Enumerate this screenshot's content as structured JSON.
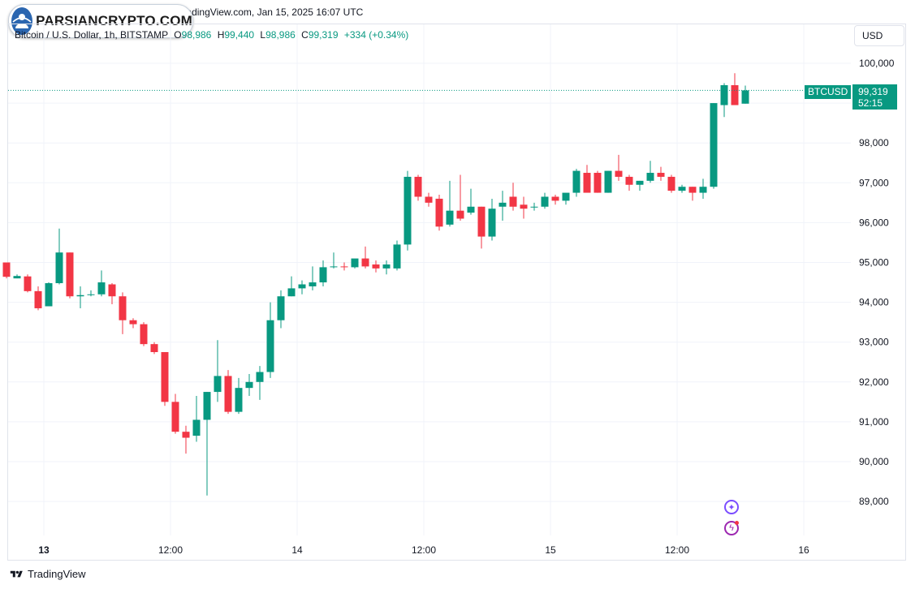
{
  "header": {
    "source_line": "Bitcoin / U.S. Dollar  published on TradingView.com, Jan 15, 2025 16:07 UTC",
    "logo_text": "PARSIANCRYPTO.COM"
  },
  "legend": {
    "symbol": "Bitcoin / U.S. Dollar, 1h, BITSTAMP",
    "open_key": "O",
    "open": "98,986",
    "high_key": "H",
    "high": "99,440",
    "low_key": "L",
    "low": "98,986",
    "close_key": "C",
    "close": "99,319",
    "change": "+334 (+0.34%)"
  },
  "currency_button": "USD",
  "price_tag": {
    "symbol": "BTCUSD",
    "price": "99,319",
    "countdown": "52:15"
  },
  "footer": {
    "brand": "TradingView"
  },
  "icons": [
    "sparkle-icon",
    "lightning-icon",
    "tradingview-logo-icon"
  ],
  "colors": {
    "up": "#089981",
    "down": "#f23645",
    "grid": "#f0f3fa",
    "border": "#e0e3eb"
  },
  "chart_data": {
    "type": "candlestick",
    "ylim": [
      88200,
      100600
    ],
    "y_ticks": [
      "89,000",
      "90,000",
      "91,000",
      "92,000",
      "93,000",
      "94,000",
      "95,000",
      "96,000",
      "97,000",
      "98,000",
      "99,000",
      "100,000"
    ],
    "y_tick_values": [
      89000,
      90000,
      91000,
      92000,
      93000,
      94000,
      95000,
      96000,
      97000,
      98000,
      99000,
      100000
    ],
    "x_ticks": [
      {
        "label": "13",
        "index": 4
      },
      {
        "label": "12:00",
        "index": 16
      },
      {
        "label": "14",
        "index": 28
      },
      {
        "label": "12:00",
        "index": 40
      },
      {
        "label": "15",
        "index": 52
      },
      {
        "label": "12:00",
        "index": 64
      },
      {
        "label": "16",
        "index": 76
      }
    ],
    "candles": [
      [
        95000,
        95000,
        94600,
        94640
      ],
      [
        94600,
        94700,
        94600,
        94660
      ],
      [
        94650,
        94700,
        94250,
        94280
      ],
      [
        94280,
        94400,
        93800,
        93850
      ],
      [
        93900,
        94500,
        93900,
        94480
      ],
      [
        94480,
        95850,
        94450,
        95250
      ],
      [
        95250,
        95250,
        94100,
        94150
      ],
      [
        94150,
        94400,
        93850,
        94180
      ],
      [
        94180,
        94300,
        94150,
        94200
      ],
      [
        94200,
        94800,
        94150,
        94500
      ],
      [
        94450,
        94480,
        93950,
        94150
      ],
      [
        94150,
        94250,
        93200,
        93550
      ],
      [
        93550,
        93600,
        93350,
        93450
      ],
      [
        93450,
        93500,
        92900,
        92950
      ],
      [
        92950,
        93000,
        92700,
        92750
      ],
      [
        92750,
        92750,
        91400,
        91500
      ],
      [
        91500,
        91700,
        90700,
        90750
      ],
      [
        90750,
        90900,
        90200,
        90600
      ],
      [
        90650,
        91650,
        90500,
        91050
      ],
      [
        91050,
        91750,
        89150,
        91750
      ],
      [
        91750,
        93050,
        91500,
        92150
      ],
      [
        92150,
        92300,
        91200,
        91250
      ],
      [
        91250,
        92100,
        91200,
        91850
      ],
      [
        91850,
        92200,
        91650,
        92000
      ],
      [
        92000,
        92400,
        91550,
        92250
      ],
      [
        92250,
        94000,
        92100,
        93550
      ],
      [
        93550,
        94300,
        93350,
        94150
      ],
      [
        94150,
        94650,
        94150,
        94350
      ],
      [
        94350,
        94550,
        94200,
        94450
      ],
      [
        94400,
        94900,
        94300,
        94500
      ],
      [
        94500,
        95050,
        94400,
        94880
      ],
      [
        94880,
        95250,
        94850,
        94900
      ],
      [
        94900,
        95000,
        94800,
        94880
      ],
      [
        94880,
        95050,
        94850,
        95100
      ],
      [
        95100,
        95400,
        94850,
        94900
      ],
      [
        94950,
        95050,
        94750,
        94850
      ],
      [
        94850,
        95050,
        94700,
        94950
      ],
      [
        94850,
        95550,
        94800,
        95450
      ],
      [
        95450,
        97300,
        95300,
        97150
      ],
      [
        97150,
        97200,
        96550,
        96650
      ],
      [
        96650,
        96750,
        96400,
        96500
      ],
      [
        96600,
        96700,
        95800,
        95900
      ],
      [
        95950,
        97050,
        95900,
        96300
      ],
      [
        96300,
        97200,
        96050,
        96100
      ],
      [
        96250,
        96850,
        96200,
        96400
      ],
      [
        96400,
        96400,
        95350,
        95650
      ],
      [
        95650,
        96600,
        95550,
        96350
      ],
      [
        96400,
        96800,
        96050,
        96500
      ],
      [
        96650,
        97000,
        96300,
        96400
      ],
      [
        96450,
        96650,
        96100,
        96350
      ],
      [
        96400,
        96500,
        96300,
        96400
      ],
      [
        96400,
        96750,
        96350,
        96650
      ],
      [
        96650,
        96700,
        96450,
        96550
      ],
      [
        96550,
        96700,
        96450,
        96750
      ],
      [
        96750,
        97350,
        96650,
        97300
      ],
      [
        97250,
        97450,
        96850,
        96750
      ],
      [
        97250,
        97300,
        96750,
        96750
      ],
      [
        96750,
        97300,
        96750,
        97300
      ],
      [
        97300,
        97700,
        97050,
        97150
      ],
      [
        97150,
        97200,
        96800,
        96950
      ],
      [
        96950,
        97050,
        96800,
        97050
      ],
      [
        97050,
        97550,
        97000,
        97250
      ],
      [
        97250,
        97400,
        97050,
        97150
      ],
      [
        97150,
        97200,
        96750,
        96800
      ],
      [
        96800,
        96950,
        96750,
        96900
      ],
      [
        96900,
        96900,
        96550,
        96750
      ],
      [
        96750,
        97100,
        96600,
        96900
      ],
      [
        96900,
        99000,
        96850,
        99000
      ],
      [
        98950,
        99500,
        98650,
        99450
      ],
      [
        99450,
        99750,
        98950,
        98950
      ],
      [
        98986,
        99440,
        98986,
        99319
      ]
    ]
  }
}
